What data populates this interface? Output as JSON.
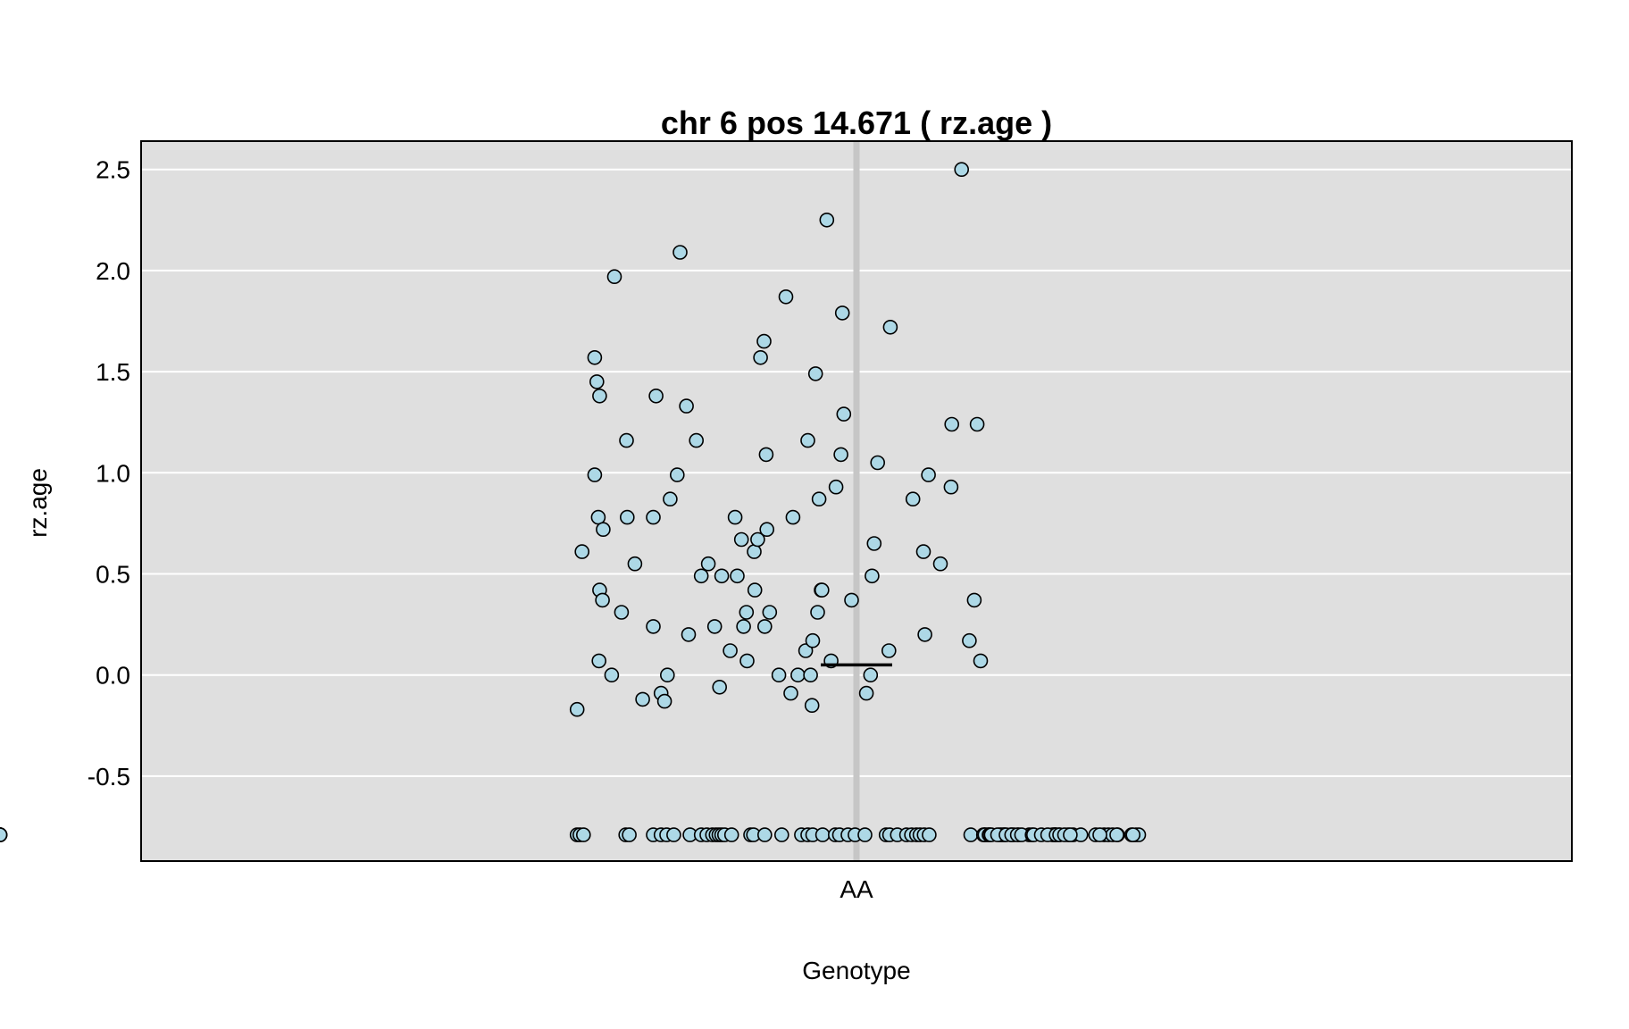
{
  "chart_data": {
    "type": "scatter",
    "title": "chr 6 pos 14.671 ( rz.age )",
    "xlabel": "Genotype",
    "ylabel": "rz.age",
    "categories": [
      "AA"
    ],
    "ylim": [
      -0.92,
      2.64
    ],
    "yticks": [
      -0.5,
      0.0,
      0.5,
      1.0,
      1.5,
      2.0,
      2.5
    ],
    "ytick_labels": [
      "-0.5",
      "0.0",
      "0.5",
      "1.0",
      "1.5",
      "2.0",
      "2.5"
    ],
    "grid": true,
    "mean": 0.05,
    "point_color": "#add8e6",
    "panel_color": "#dfdfdf",
    "series": [
      {
        "category": "AA",
        "jitter": [
          -0.396,
          -0.389,
          -0.364,
          -0.371,
          -0.366,
          -0.371,
          -0.368,
          -0.365,
          -0.364,
          -0.36,
          -0.359,
          -0.347,
          -0.343,
          -0.333,
          -0.326,
          -0.325,
          -0.314,
          -0.303,
          -0.288,
          -0.288,
          -0.284,
          -0.277,
          -0.272,
          -0.268,
          -0.264,
          -0.254,
          -0.25,
          -0.241,
          -0.238,
          -0.227,
          -0.22,
          -0.21,
          -0.201,
          -0.194,
          -0.191,
          -0.179,
          -0.172,
          -0.169,
          -0.163,
          -0.16,
          -0.156,
          -0.155,
          -0.145,
          -0.144,
          -0.14,
          -0.136,
          -0.131,
          -0.13,
          -0.128,
          -0.127,
          -0.123,
          -0.11,
          -0.1,
          -0.093,
          -0.09,
          -0.083,
          -0.072,
          -0.069,
          -0.065,
          -0.063,
          -0.062,
          -0.058,
          -0.055,
          -0.053,
          -0.05,
          -0.049,
          -0.042,
          -0.036,
          -0.029,
          -0.022,
          -0.02,
          -0.018,
          -0.007,
          0.014,
          0.02,
          0.022,
          0.025,
          0.03,
          0.046,
          0.048,
          0.08,
          0.095,
          0.097,
          0.102,
          0.119,
          0.134,
          0.135,
          0.149,
          0.16,
          0.167,
          0.171,
          0.176,
          0.182,
          0.186,
          0.203,
          0.206,
          0.209,
          0.21,
          0.219,
          0.223,
          0.23,
          0.245,
          0.278,
          0.28,
          0.281,
          0.282,
          0.287,
          0.3,
          0.307,
          0.318,
          0.339,
          0.351,
          0.357,
          0.363,
          0.37,
          0.39,
          0.396,
          0.4,
          -0.396,
          -0.392,
          -0.387,
          -0.327,
          -0.322,
          -0.288,
          -0.277,
          -0.269,
          -0.259,
          -0.236,
          -0.22,
          -0.212,
          -0.204,
          -0.199,
          -0.195,
          -0.191,
          -0.187,
          -0.177,
          -0.15,
          -0.146,
          -0.13,
          -0.106,
          -0.078,
          -0.069,
          -0.062,
          -0.048,
          -0.03,
          -0.024,
          -0.012,
          -0.002,
          0.012,
          0.042,
          0.047,
          0.058,
          0.071,
          0.078,
          0.085,
          0.09,
          0.096,
          0.103,
          0.162,
          0.18,
          0.182,
          0.188,
          0.189,
          0.191,
          0.2,
          0.212,
          0.22,
          0.228,
          0.234,
          0.249,
          0.251,
          0.262,
          0.271,
          0.283,
          0.288,
          0.295,
          0.303,
          0.345,
          0.369,
          0.392
        ],
        "values": [
          -0.17,
          0.61,
          1.38,
          0.99,
          0.78,
          1.57,
          1.45,
          0.07,
          0.42,
          0.37,
          0.72,
          0.0,
          1.97,
          0.31,
          1.16,
          0.78,
          0.55,
          -0.12,
          0.24,
          0.78,
          1.38,
          -0.09,
          -0.13,
          0.0,
          0.87,
          0.99,
          2.09,
          1.33,
          0.2,
          1.16,
          0.49,
          0.55,
          0.24,
          -0.06,
          0.49,
          0.12,
          0.78,
          0.49,
          0.67,
          0.24,
          0.31,
          0.07,
          0.61,
          0.42,
          0.67,
          1.57,
          1.65,
          0.24,
          1.09,
          0.72,
          0.31,
          0.0,
          1.87,
          -0.09,
          0.78,
          0.0,
          0.12,
          1.16,
          0.0,
          -0.15,
          0.17,
          1.49,
          0.31,
          0.87,
          0.42,
          0.42,
          2.25,
          0.07,
          0.93,
          1.09,
          1.79,
          1.29,
          0.37,
          -0.09,
          0.0,
          0.49,
          0.65,
          1.05,
          0.12,
          1.72,
          0.87,
          0.61,
          0.2,
          0.99,
          0.55,
          0.93,
          1.24,
          2.5,
          0.17,
          0.37,
          1.24,
          0.07,
          -0.79,
          -0.79,
          -0.79,
          -0.79,
          -0.79,
          -0.79,
          -0.79,
          -0.79,
          -0.79,
          -0.79,
          -0.79,
          -0.79,
          -0.79,
          -0.79,
          -0.79,
          -0.79,
          -0.79,
          -0.79,
          -0.79,
          -0.79,
          -0.79,
          -0.79,
          -0.79,
          -0.79,
          -0.79,
          -0.79,
          -0.79,
          -0.79,
          -0.79,
          -0.79,
          -0.79,
          -0.79,
          -0.79,
          -0.79,
          -0.79,
          -0.79,
          -0.79,
          -0.79,
          -0.79,
          -0.79,
          -0.79,
          -0.79,
          -0.79,
          -0.79,
          -0.79,
          -0.79,
          -0.79,
          -0.79,
          -0.79,
          -0.79,
          -0.79,
          -0.79,
          -0.79,
          -0.79,
          -0.79,
          -0.79,
          -0.79,
          -0.79,
          -0.79,
          -0.79,
          -0.79,
          -0.79,
          -0.79,
          -0.79,
          -0.79,
          -0.79,
          -0.79,
          -0.79,
          -0.79,
          -0.79,
          -0.79,
          -0.79,
          -0.79,
          -0.79,
          -0.79,
          -0.79,
          -0.79,
          -0.79,
          -0.79,
          -0.79,
          -0.79,
          -0.79,
          -0.79,
          -0.79,
          -0.79,
          -0.79,
          -0.79,
          -0.79,
          -0.79,
          -0.79,
          -0.79,
          -0.79,
          -0.79,
          -0.79
        ]
      }
    ]
  }
}
